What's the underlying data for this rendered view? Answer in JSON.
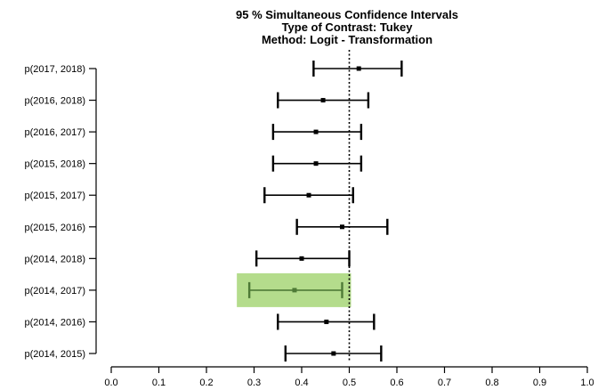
{
  "chart_data": {
    "type": "errorbar",
    "title": "95 % Simultaneous Confidence Intervals",
    "subtitle_lines": [
      "Type of Contrast: Tukey",
      "Method: Logit - Transformation"
    ],
    "xlabel": "",
    "ylabel": "",
    "xlim": [
      0.0,
      1.0
    ],
    "x_ticks": [
      "0.0",
      "0.1",
      "0.2",
      "0.3",
      "0.4",
      "0.5",
      "0.6",
      "0.7",
      "0.8",
      "0.9",
      "1.0"
    ],
    "reference_line_x": 0.5,
    "reference_line_style": "dotted",
    "grid": false,
    "rows": [
      {
        "label": "p(2017, 2018)",
        "estimate": 0.52,
        "lower": 0.425,
        "upper": 0.61
      },
      {
        "label": "p(2016, 2018)",
        "estimate": 0.445,
        "lower": 0.35,
        "upper": 0.54
      },
      {
        "label": "p(2016, 2017)",
        "estimate": 0.43,
        "lower": 0.34,
        "upper": 0.525
      },
      {
        "label": "p(2015, 2018)",
        "estimate": 0.43,
        "lower": 0.34,
        "upper": 0.525
      },
      {
        "label": "p(2015, 2017)",
        "estimate": 0.415,
        "lower": 0.322,
        "upper": 0.508
      },
      {
        "label": "p(2015, 2016)",
        "estimate": 0.485,
        "lower": 0.39,
        "upper": 0.58
      },
      {
        "label": "p(2014, 2018)",
        "estimate": 0.4,
        "lower": 0.305,
        "upper": 0.5
      },
      {
        "label": "p(2014, 2017)",
        "estimate": 0.385,
        "lower": 0.29,
        "upper": 0.485,
        "highlighted": true
      },
      {
        "label": "p(2014, 2016)",
        "estimate": 0.452,
        "lower": 0.35,
        "upper": 0.552
      },
      {
        "label": "p(2014, 2015)",
        "estimate": 0.467,
        "lower": 0.366,
        "upper": 0.567
      }
    ],
    "highlight_color": "#b4dc8c",
    "highlight_line_color": "#4e7a36",
    "line_color": "#000000"
  }
}
